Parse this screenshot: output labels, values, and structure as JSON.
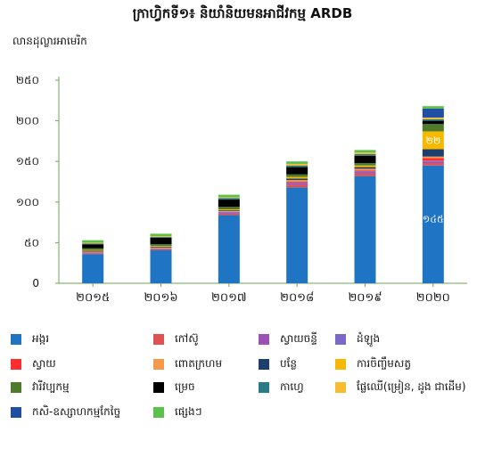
{
  "title": "ក្រាហ្វិកទី១៖ និយាំនិយមនអាជីវកម្ម ARDB",
  "unit_label": "លានដុល្លារអាមេរិក",
  "chart_data": {
    "type": "bar",
    "stacked": true,
    "title": "ក្រាហ្វិកទី១៖ និយាំនិយមនអាជីវកម្ម ARDB",
    "ylabel": "លានដុល្លារអាមេរិក",
    "xlabel": "",
    "ylim": [
      0,
      250
    ],
    "yticks": [
      0,
      50,
      100,
      150,
      200,
      250
    ],
    "ytick_labels": [
      "0",
      "៥០",
      "១០០",
      "១៥០",
      "២០០",
      "២៥០"
    ],
    "categories": [
      "២០១៥",
      "២០១៦",
      "២០១៧",
      "២០១៨",
      "២០១៩",
      "២០២០"
    ],
    "grid": false,
    "legend_position": "bottom",
    "series": [
      {
        "name": "អង្ករ",
        "color": "#1f74c4",
        "values": [
          36,
          41,
          84,
          118,
          132,
          145
        ]
      },
      {
        "name": "កៅស៊ូ",
        "color": "#e05252",
        "values": [
          1,
          1,
          2,
          3,
          3,
          3
        ]
      },
      {
        "name": "ស្វាយចន្ទី",
        "color": "#9d4fb5",
        "values": [
          1,
          1,
          1,
          2,
          2,
          2
        ]
      },
      {
        "name": "ដំឡូង",
        "color": "#7b68c9",
        "values": [
          0,
          0,
          1,
          1,
          1,
          1
        ]
      },
      {
        "name": "ស្វាយ",
        "color": "#ff2d2d",
        "values": [
          0,
          0,
          0,
          1,
          1,
          3
        ]
      },
      {
        "name": "ពោតក្រហម",
        "color": "#f59a4a",
        "values": [
          1,
          1,
          1,
          2,
          2,
          2
        ]
      },
      {
        "name": "បន្លែ",
        "color": "#1e3f6e",
        "values": [
          1,
          1,
          1,
          2,
          2,
          9
        ]
      },
      {
        "name": "ការចិញ្ចឹមសត្វ",
        "color": "#f6b800",
        "values": [
          1,
          1,
          1,
          2,
          2,
          22
        ]
      },
      {
        "name": "វារីវប្បកម្ម",
        "color": "#4e7a2c",
        "values": [
          2,
          2,
          3,
          3,
          3,
          9
        ]
      },
      {
        "name": "ម្រេច",
        "color": "#000000",
        "values": [
          5,
          8,
          9,
          9,
          9,
          4
        ]
      },
      {
        "name": "កាហ្វេ",
        "color": "#2a7b86",
        "values": [
          1,
          1,
          2,
          2,
          2,
          2
        ]
      },
      {
        "name": "ផ្លែឈើ(ម្រៀន, ដូង ជាដើម)",
        "color": "#f8bc2e",
        "values": [
          1,
          1,
          1,
          2,
          2,
          2
        ]
      },
      {
        "name": "កសិ-ឧស្សាហកម្មកែច្នៃ",
        "color": "#1f4ea3",
        "values": [
          0,
          0,
          0,
          0,
          0,
          11
        ]
      },
      {
        "name": "ផ្សេងៗ",
        "color": "#5ac14c",
        "values": [
          3,
          3,
          3,
          3,
          3,
          3
        ]
      }
    ],
    "data_labels": [
      {
        "category": "២០២០",
        "series": "ការចិញ្ចឹមសត្វ",
        "text": "២២"
      },
      {
        "category": "២០២០",
        "series": "អង្ករ",
        "text": "១៤៥"
      }
    ]
  }
}
